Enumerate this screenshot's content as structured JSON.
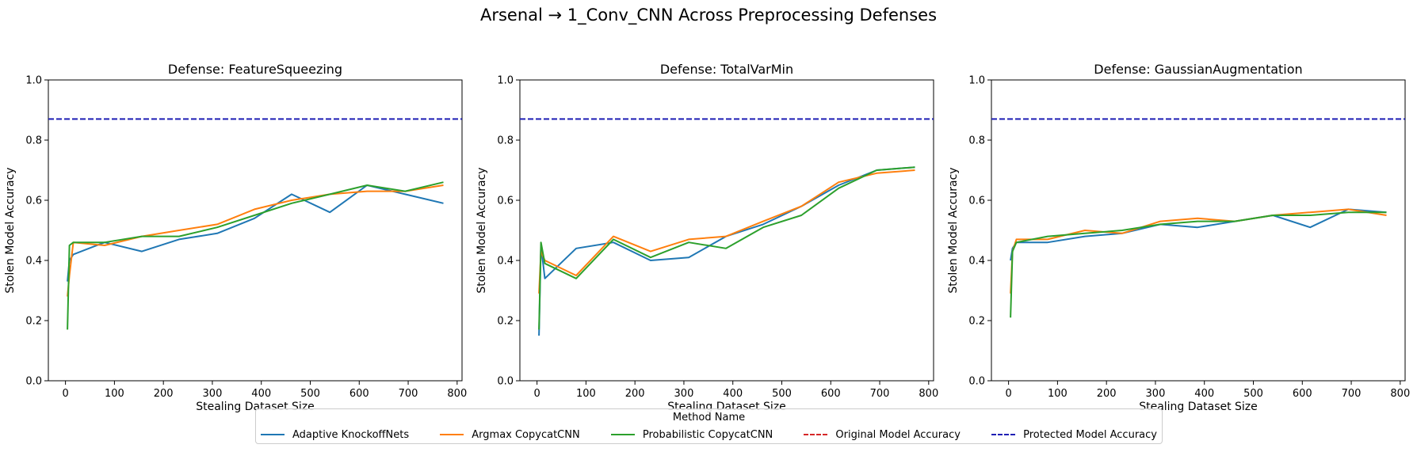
{
  "suptitle": "Arsenal → 1_Conv_CNN Across Preprocessing Defenses",
  "legend": {
    "title": "Method Name",
    "items": [
      {
        "label": "Adaptive KnockoffNets",
        "color": "#1f77b4",
        "style": "solid"
      },
      {
        "label": "Argmax CopycatCNN",
        "color": "#ff7f0e",
        "style": "solid"
      },
      {
        "label": "Probabilistic CopycatCNN",
        "color": "#2ca02c",
        "style": "solid"
      },
      {
        "label": "Original Model Accuracy",
        "color": "#d62728",
        "style": "dashed"
      },
      {
        "label": "Protected Model Accuracy",
        "color": "#1f1fb4",
        "style": "dashed"
      }
    ]
  },
  "chart_data": [
    {
      "type": "line",
      "title": "Defense: FeatureSqueezing",
      "xlabel": "Stealing Dataset Size",
      "ylabel": "Stolen Model Accuracy",
      "xlim": [
        -35,
        810
      ],
      "ylim": [
        0,
        1
      ],
      "xticks": [
        0,
        100,
        200,
        300,
        400,
        500,
        600,
        700,
        800
      ],
      "yticks": [
        0.0,
        0.2,
        0.4,
        0.6,
        0.8,
        1.0
      ],
      "grid": false,
      "protected_accuracy": 0.87,
      "series": [
        {
          "name": "Adaptive KnockoffNets",
          "x": [
            4,
            8,
            16,
            80,
            156,
            232,
            310,
            386,
            462,
            540,
            616,
            694,
            772
          ],
          "y": [
            0.33,
            0.4,
            0.42,
            0.46,
            0.43,
            0.47,
            0.49,
            0.54,
            0.62,
            0.56,
            0.65,
            0.62,
            0.59
          ]
        },
        {
          "name": "Argmax CopycatCNN",
          "x": [
            4,
            8,
            16,
            80,
            156,
            232,
            310,
            386,
            462,
            540,
            616,
            694,
            772
          ],
          "y": [
            0.28,
            0.35,
            0.46,
            0.45,
            0.48,
            0.5,
            0.52,
            0.57,
            0.6,
            0.62,
            0.63,
            0.63,
            0.65
          ]
        },
        {
          "name": "Probabilistic CopycatCNN",
          "x": [
            4,
            8,
            16,
            80,
            156,
            232,
            310,
            386,
            462,
            540,
            616,
            694,
            772
          ],
          "y": [
            0.17,
            0.45,
            0.46,
            0.46,
            0.48,
            0.48,
            0.51,
            0.55,
            0.59,
            0.62,
            0.65,
            0.63,
            0.66
          ]
        }
      ]
    },
    {
      "type": "line",
      "title": "Defense: TotalVarMin",
      "xlabel": "Stealing Dataset Size",
      "ylabel": "Stolen Model Accuracy",
      "xlim": [
        -35,
        810
      ],
      "ylim": [
        0,
        1
      ],
      "xticks": [
        0,
        100,
        200,
        300,
        400,
        500,
        600,
        700,
        800
      ],
      "yticks": [
        0.0,
        0.2,
        0.4,
        0.6,
        0.8,
        1.0
      ],
      "grid": false,
      "protected_accuracy": 0.87,
      "series": [
        {
          "name": "Adaptive KnockoffNets",
          "x": [
            4,
            8,
            16,
            80,
            156,
            232,
            310,
            386,
            462,
            540,
            616,
            694,
            772
          ],
          "y": [
            0.15,
            0.45,
            0.34,
            0.44,
            0.46,
            0.4,
            0.41,
            0.48,
            0.52,
            0.58,
            0.65,
            0.7,
            0.71
          ]
        },
        {
          "name": "Argmax CopycatCNN",
          "x": [
            4,
            8,
            16,
            80,
            156,
            232,
            310,
            386,
            462,
            540,
            616,
            694,
            772
          ],
          "y": [
            0.29,
            0.43,
            0.4,
            0.35,
            0.48,
            0.43,
            0.47,
            0.48,
            0.53,
            0.58,
            0.66,
            0.69,
            0.7
          ]
        },
        {
          "name": "Probabilistic CopycatCNN",
          "x": [
            4,
            8,
            16,
            80,
            156,
            232,
            310,
            386,
            462,
            540,
            616,
            694,
            772
          ],
          "y": [
            0.17,
            0.46,
            0.39,
            0.34,
            0.47,
            0.41,
            0.46,
            0.44,
            0.51,
            0.55,
            0.64,
            0.7,
            0.71
          ]
        }
      ]
    },
    {
      "type": "line",
      "title": "Defense: GaussianAugmentation",
      "xlabel": "Stealing Dataset Size",
      "ylabel": "Stolen Model Accuracy",
      "xlim": [
        -35,
        810
      ],
      "ylim": [
        0,
        1
      ],
      "xticks": [
        0,
        100,
        200,
        300,
        400,
        500,
        600,
        700,
        800
      ],
      "yticks": [
        0.0,
        0.2,
        0.4,
        0.6,
        0.8,
        1.0
      ],
      "grid": false,
      "protected_accuracy": 0.87,
      "series": [
        {
          "name": "Adaptive KnockoffNets",
          "x": [
            4,
            8,
            16,
            80,
            156,
            232,
            310,
            386,
            462,
            540,
            616,
            694,
            772
          ],
          "y": [
            0.4,
            0.44,
            0.46,
            0.46,
            0.48,
            0.49,
            0.52,
            0.51,
            0.53,
            0.55,
            0.51,
            0.57,
            0.56
          ]
        },
        {
          "name": "Argmax CopycatCNN",
          "x": [
            4,
            8,
            16,
            80,
            156,
            232,
            310,
            386,
            462,
            540,
            616,
            694,
            772
          ],
          "y": [
            0.29,
            0.43,
            0.47,
            0.47,
            0.5,
            0.49,
            0.53,
            0.54,
            0.53,
            0.55,
            0.56,
            0.57,
            0.55
          ]
        },
        {
          "name": "Probabilistic CopycatCNN",
          "x": [
            4,
            8,
            16,
            80,
            156,
            232,
            310,
            386,
            462,
            540,
            616,
            694,
            772
          ],
          "y": [
            0.21,
            0.43,
            0.46,
            0.48,
            0.49,
            0.5,
            0.52,
            0.53,
            0.53,
            0.55,
            0.55,
            0.56,
            0.56
          ]
        }
      ]
    }
  ]
}
